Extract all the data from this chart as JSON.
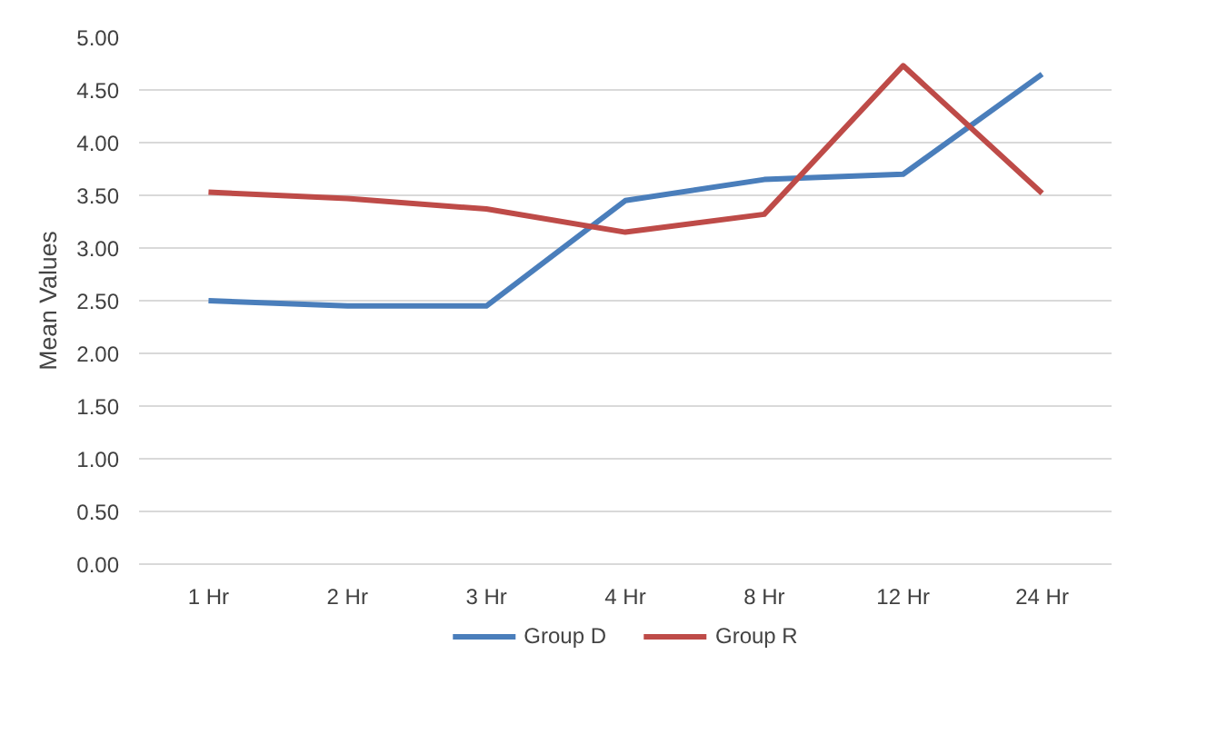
{
  "chart_data": {
    "type": "line",
    "ylabel": "Mean Values",
    "categories": [
      "1 Hr",
      "2 Hr",
      "3 Hr",
      "4 Hr",
      "8 Hr",
      "12 Hr",
      "24 Hr"
    ],
    "series": [
      {
        "name": "Group D",
        "color": "#4a7ebb",
        "values": [
          2.5,
          2.45,
          2.45,
          3.45,
          3.65,
          3.7,
          4.65
        ]
      },
      {
        "name": "Group R",
        "color": "#be4b48",
        "values": [
          3.53,
          3.47,
          3.37,
          3.15,
          3.32,
          4.73,
          3.52
        ]
      }
    ],
    "ylim": [
      0,
      5
    ],
    "yticks": [
      {
        "value": 0,
        "label": "0.00"
      },
      {
        "value": 0.5,
        "label": "0.50"
      },
      {
        "value": 1,
        "label": "1.00"
      },
      {
        "value": 1.5,
        "label": "1.50"
      },
      {
        "value": 2,
        "label": "2.00"
      },
      {
        "value": 2.5,
        "label": "2.50"
      },
      {
        "value": 3,
        "label": "3.00"
      },
      {
        "value": 3.5,
        "label": "3.50"
      },
      {
        "value": 4,
        "label": "4.00"
      },
      {
        "value": 4.5,
        "label": "4.50"
      },
      {
        "value": 5,
        "label": "5.00"
      }
    ],
    "grid": "y",
    "legend": "bottom",
    "marker": "none",
    "line_style": "solid"
  }
}
